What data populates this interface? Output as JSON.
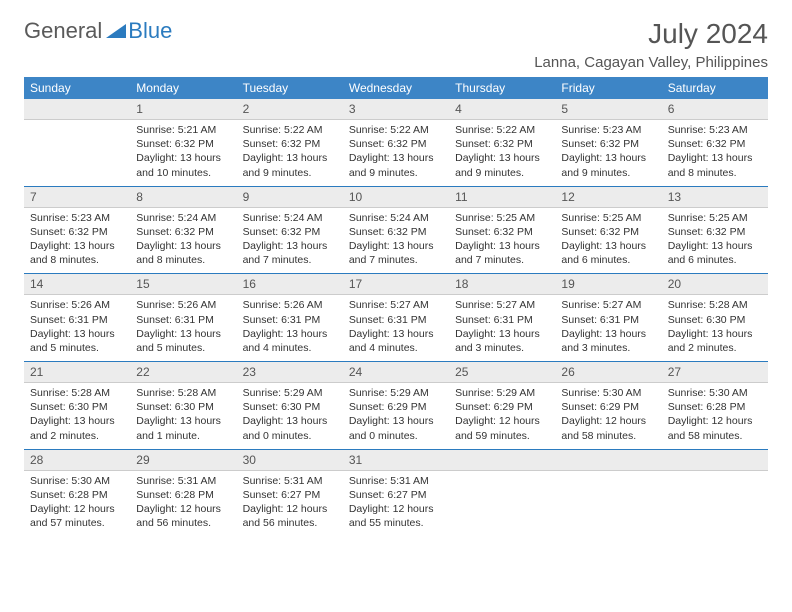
{
  "brand": {
    "general": "General",
    "blue": "Blue"
  },
  "title": "July 2024",
  "location": "Lanna, Cagayan Valley, Philippines",
  "colors": {
    "header_bg": "#3d85c6",
    "header_text": "#ffffff",
    "daynum_bg": "#ececec",
    "border_blue": "#2b7bbf",
    "border_gray": "#cccccc",
    "text": "#333333",
    "title_text": "#555555"
  },
  "weekdays": [
    "Sunday",
    "Monday",
    "Tuesday",
    "Wednesday",
    "Thursday",
    "Friday",
    "Saturday"
  ],
  "weeks": [
    {
      "days": [
        null,
        {
          "n": "1",
          "sr": "Sunrise: 5:21 AM",
          "ss": "Sunset: 6:32 PM",
          "dl": "Daylight: 13 hours and 10 minutes."
        },
        {
          "n": "2",
          "sr": "Sunrise: 5:22 AM",
          "ss": "Sunset: 6:32 PM",
          "dl": "Daylight: 13 hours and 9 minutes."
        },
        {
          "n": "3",
          "sr": "Sunrise: 5:22 AM",
          "ss": "Sunset: 6:32 PM",
          "dl": "Daylight: 13 hours and 9 minutes."
        },
        {
          "n": "4",
          "sr": "Sunrise: 5:22 AM",
          "ss": "Sunset: 6:32 PM",
          "dl": "Daylight: 13 hours and 9 minutes."
        },
        {
          "n": "5",
          "sr": "Sunrise: 5:23 AM",
          "ss": "Sunset: 6:32 PM",
          "dl": "Daylight: 13 hours and 9 minutes."
        },
        {
          "n": "6",
          "sr": "Sunrise: 5:23 AM",
          "ss": "Sunset: 6:32 PM",
          "dl": "Daylight: 13 hours and 8 minutes."
        }
      ]
    },
    {
      "days": [
        {
          "n": "7",
          "sr": "Sunrise: 5:23 AM",
          "ss": "Sunset: 6:32 PM",
          "dl": "Daylight: 13 hours and 8 minutes."
        },
        {
          "n": "8",
          "sr": "Sunrise: 5:24 AM",
          "ss": "Sunset: 6:32 PM",
          "dl": "Daylight: 13 hours and 8 minutes."
        },
        {
          "n": "9",
          "sr": "Sunrise: 5:24 AM",
          "ss": "Sunset: 6:32 PM",
          "dl": "Daylight: 13 hours and 7 minutes."
        },
        {
          "n": "10",
          "sr": "Sunrise: 5:24 AM",
          "ss": "Sunset: 6:32 PM",
          "dl": "Daylight: 13 hours and 7 minutes."
        },
        {
          "n": "11",
          "sr": "Sunrise: 5:25 AM",
          "ss": "Sunset: 6:32 PM",
          "dl": "Daylight: 13 hours and 7 minutes."
        },
        {
          "n": "12",
          "sr": "Sunrise: 5:25 AM",
          "ss": "Sunset: 6:32 PM",
          "dl": "Daylight: 13 hours and 6 minutes."
        },
        {
          "n": "13",
          "sr": "Sunrise: 5:25 AM",
          "ss": "Sunset: 6:32 PM",
          "dl": "Daylight: 13 hours and 6 minutes."
        }
      ]
    },
    {
      "days": [
        {
          "n": "14",
          "sr": "Sunrise: 5:26 AM",
          "ss": "Sunset: 6:31 PM",
          "dl": "Daylight: 13 hours and 5 minutes."
        },
        {
          "n": "15",
          "sr": "Sunrise: 5:26 AM",
          "ss": "Sunset: 6:31 PM",
          "dl": "Daylight: 13 hours and 5 minutes."
        },
        {
          "n": "16",
          "sr": "Sunrise: 5:26 AM",
          "ss": "Sunset: 6:31 PM",
          "dl": "Daylight: 13 hours and 4 minutes."
        },
        {
          "n": "17",
          "sr": "Sunrise: 5:27 AM",
          "ss": "Sunset: 6:31 PM",
          "dl": "Daylight: 13 hours and 4 minutes."
        },
        {
          "n": "18",
          "sr": "Sunrise: 5:27 AM",
          "ss": "Sunset: 6:31 PM",
          "dl": "Daylight: 13 hours and 3 minutes."
        },
        {
          "n": "19",
          "sr": "Sunrise: 5:27 AM",
          "ss": "Sunset: 6:31 PM",
          "dl": "Daylight: 13 hours and 3 minutes."
        },
        {
          "n": "20",
          "sr": "Sunrise: 5:28 AM",
          "ss": "Sunset: 6:30 PM",
          "dl": "Daylight: 13 hours and 2 minutes."
        }
      ]
    },
    {
      "days": [
        {
          "n": "21",
          "sr": "Sunrise: 5:28 AM",
          "ss": "Sunset: 6:30 PM",
          "dl": "Daylight: 13 hours and 2 minutes."
        },
        {
          "n": "22",
          "sr": "Sunrise: 5:28 AM",
          "ss": "Sunset: 6:30 PM",
          "dl": "Daylight: 13 hours and 1 minute."
        },
        {
          "n": "23",
          "sr": "Sunrise: 5:29 AM",
          "ss": "Sunset: 6:30 PM",
          "dl": "Daylight: 13 hours and 0 minutes."
        },
        {
          "n": "24",
          "sr": "Sunrise: 5:29 AM",
          "ss": "Sunset: 6:29 PM",
          "dl": "Daylight: 13 hours and 0 minutes."
        },
        {
          "n": "25",
          "sr": "Sunrise: 5:29 AM",
          "ss": "Sunset: 6:29 PM",
          "dl": "Daylight: 12 hours and 59 minutes."
        },
        {
          "n": "26",
          "sr": "Sunrise: 5:30 AM",
          "ss": "Sunset: 6:29 PM",
          "dl": "Daylight: 12 hours and 58 minutes."
        },
        {
          "n": "27",
          "sr": "Sunrise: 5:30 AM",
          "ss": "Sunset: 6:28 PM",
          "dl": "Daylight: 12 hours and 58 minutes."
        }
      ]
    },
    {
      "days": [
        {
          "n": "28",
          "sr": "Sunrise: 5:30 AM",
          "ss": "Sunset: 6:28 PM",
          "dl": "Daylight: 12 hours and 57 minutes."
        },
        {
          "n": "29",
          "sr": "Sunrise: 5:31 AM",
          "ss": "Sunset: 6:28 PM",
          "dl": "Daylight: 12 hours and 56 minutes."
        },
        {
          "n": "30",
          "sr": "Sunrise: 5:31 AM",
          "ss": "Sunset: 6:27 PM",
          "dl": "Daylight: 12 hours and 56 minutes."
        },
        {
          "n": "31",
          "sr": "Sunrise: 5:31 AM",
          "ss": "Sunset: 6:27 PM",
          "dl": "Daylight: 12 hours and 55 minutes."
        },
        null,
        null,
        null
      ]
    }
  ]
}
